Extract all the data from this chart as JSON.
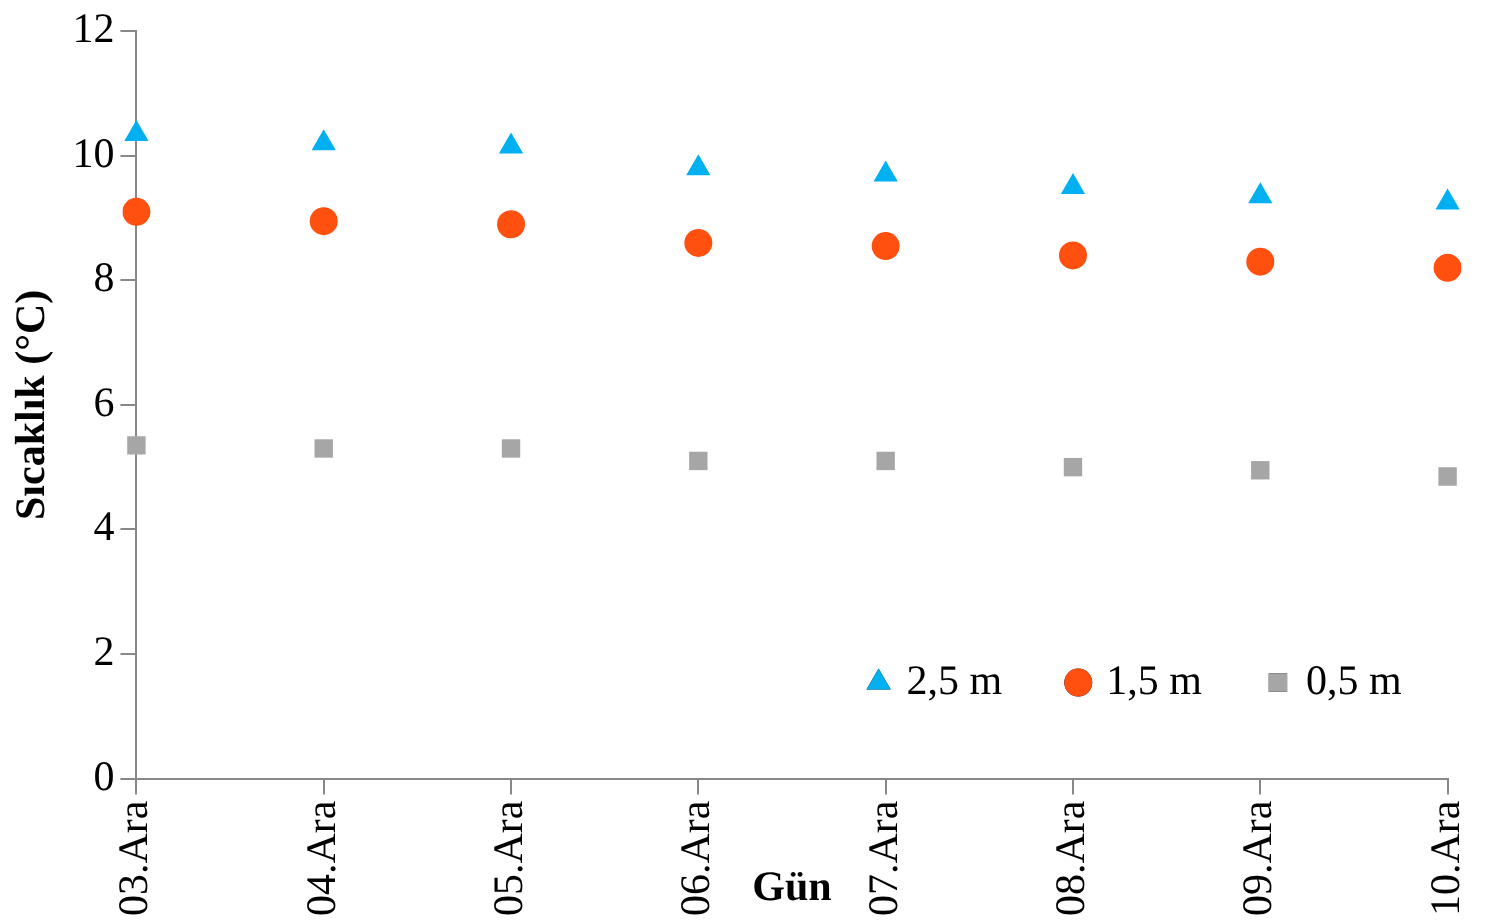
{
  "chart_data": {
    "type": "scatter",
    "xlabel": "Gün",
    "ylabel": "Sıcaklık (°C)",
    "categories": [
      "03.Ara",
      "04.Ara",
      "05.Ara",
      "06.Ara",
      "07.Ara",
      "08.Ara",
      "09.Ara",
      "10.Ara"
    ],
    "series": [
      {
        "name": "2,5 m",
        "color": "#00b0f0",
        "marker": "triangle",
        "values": [
          10.35,
          10.2,
          10.15,
          9.8,
          9.7,
          9.5,
          9.35,
          9.25
        ]
      },
      {
        "name": "1,5 m",
        "color": "#ff5010",
        "marker": "circle",
        "values": [
          9.1,
          8.95,
          8.9,
          8.6,
          8.55,
          8.4,
          8.3,
          8.2
        ]
      },
      {
        "name": "0,5 m",
        "color": "#a6a6a6",
        "marker": "square",
        "values": [
          5.35,
          5.3,
          5.3,
          5.1,
          5.1,
          5.0,
          4.95,
          4.85
        ]
      }
    ],
    "ylim": [
      0,
      12
    ],
    "yticks": [
      0,
      2,
      4,
      6,
      8,
      10,
      12
    ],
    "grid": false,
    "legend": "bottom right"
  }
}
